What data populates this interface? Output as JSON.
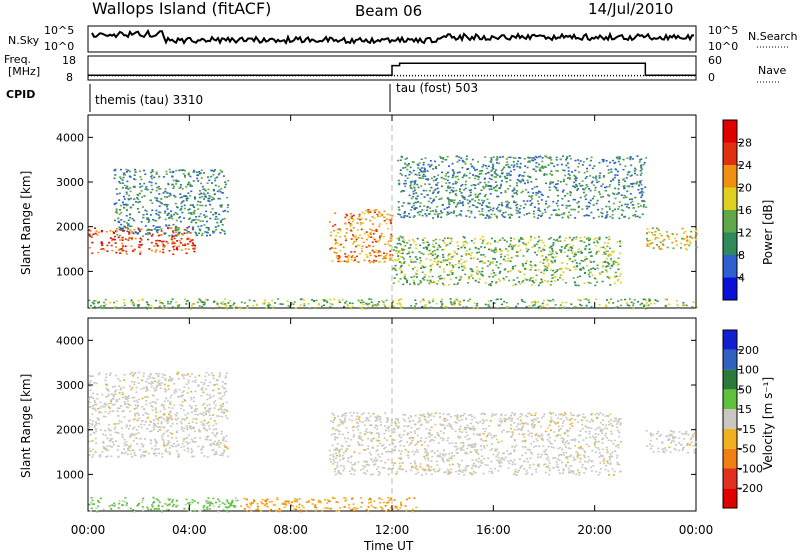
{
  "header": {
    "station": "Wallops Island (fitACF)",
    "beam": "Beam 06",
    "date": "14/Jul/2010"
  },
  "sky_panel": {
    "left_label": "N.Sky",
    "left_ticks": [
      "10^5",
      "10^0"
    ],
    "right_ticks": [
      "10^5",
      "10^0"
    ],
    "right_label": "N.Search"
  },
  "freq_panel": {
    "left_label_line1": "Freq.",
    "left_label_line2": "[MHz]",
    "left_ticks": [
      "18",
      "8"
    ],
    "right_ticks": [
      "60",
      "0"
    ],
    "right_label": "Nave"
  },
  "cpid": {
    "label": "CPID",
    "modes": [
      {
        "name": "themis (tau) 3310",
        "start_hour": 0
      },
      {
        "name": "tau (fost) 503",
        "start_hour": 12
      }
    ]
  },
  "axes": {
    "y_label": "Slant Range [km]",
    "y_ticks": [
      "1000",
      "2000",
      "3000",
      "4000"
    ],
    "x_label": "Time UT",
    "x_ticks": [
      "00:00",
      "04:00",
      "08:00",
      "12:00",
      "16:00",
      "20:00",
      "00:00"
    ]
  },
  "power_scale": {
    "label": "Power [dB]",
    "ticks": [
      "4",
      "8",
      "12",
      "16",
      "20",
      "24",
      "28"
    ],
    "colors": [
      "#0a10d8",
      "#2f5fd0",
      "#2e8a5a",
      "#5fa84a",
      "#e0d020",
      "#f09010",
      "#e03010",
      "#e00000"
    ]
  },
  "velocity_scale": {
    "label": "Velocity [m s⁻¹]",
    "ticks": [
      "200",
      "100",
      "50",
      "15",
      "-15",
      "-50",
      "-100",
      "-200"
    ],
    "colors": [
      "#1020d0",
      "#3060c0",
      "#2a7a3a",
      "#60c040",
      "#c8c8c0",
      "#f0b020",
      "#f08010",
      "#e03020",
      "#e00000"
    ]
  },
  "chart_data": {
    "type": "heatmap",
    "x_range_hours": [
      0,
      24
    ],
    "y_range_km": [
      180,
      4500
    ],
    "time_axis_units": "hours UT",
    "panels": [
      {
        "name": "power",
        "units": "dB",
        "echo_regions": [
          {
            "t": [
              0.0,
              4.2
            ],
            "range_km": [
              1400,
              2000
            ],
            "power_db": 22
          },
          {
            "t": [
              1.0,
              5.5
            ],
            "range_km": [
              1800,
              3300
            ],
            "power_db": 8
          },
          {
            "t": [
              9.5,
              12.0
            ],
            "range_km": [
              1200,
              2400
            ],
            "power_db": 20
          },
          {
            "t": [
              12.0,
              21.0
            ],
            "range_km": [
              700,
              1800
            ],
            "power_db": 12
          },
          {
            "t": [
              12.2,
              22.0
            ],
            "range_km": [
              2200,
              3600
            ],
            "power_db": 8
          },
          {
            "t": [
              22.0,
              24.0
            ],
            "range_km": [
              1500,
              2000
            ],
            "power_db": 16
          },
          {
            "t": [
              0.0,
              24.0
            ],
            "range_km": [
              180,
              400
            ],
            "power_db": 10
          }
        ]
      },
      {
        "name": "velocity",
        "units": "m/s",
        "echo_regions": [
          {
            "t": [
              0.0,
              5.5
            ],
            "range_km": [
              1400,
              3300
            ],
            "velocity": 0
          },
          {
            "t": [
              9.5,
              21.0
            ],
            "range_km": [
              1000,
              2400
            ],
            "velocity": 0
          },
          {
            "t": [
              22.0,
              24.0
            ],
            "range_km": [
              1500,
              2000
            ],
            "velocity": 0
          },
          {
            "t": [
              6.0,
              13.0
            ],
            "range_km": [
              180,
              500
            ],
            "velocity": -40
          },
          {
            "t": [
              0.0,
              6.0
            ],
            "range_km": [
              180,
              500
            ],
            "velocity": 30
          }
        ]
      }
    ],
    "frequency_mhz": [
      {
        "t": [
          0,
          12
        ],
        "value": 10
      },
      {
        "t": [
          12,
          12.3
        ],
        "value": 14
      },
      {
        "t": [
          12.3,
          22
        ],
        "value": 15
      },
      {
        "t": [
          22,
          24
        ],
        "value": 10
      }
    ],
    "nave": [
      {
        "t": [
          0,
          24
        ],
        "value": 1
      }
    ]
  }
}
